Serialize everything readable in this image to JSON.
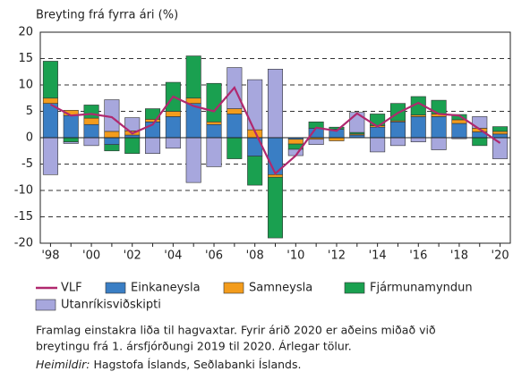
{
  "chart_data": {
    "type": "bar",
    "stacked": true,
    "ylabel": "Breyting frá fyrra ári (%)",
    "categories": [
      "'98",
      null,
      "'00",
      null,
      "'02",
      null,
      "'04",
      null,
      "'06",
      null,
      "'08",
      null,
      "'10",
      null,
      "'12",
      null,
      "'14",
      null,
      "'16",
      null,
      "'18",
      null,
      "'20"
    ],
    "series": [
      {
        "name": "VLF",
        "type": "line",
        "color": "#b0286e",
        "values": [
          6.3,
          4.2,
          4.5,
          3.9,
          0.8,
          2.5,
          7.8,
          6.0,
          5.0,
          9.5,
          1.2,
          -6.8,
          -3.4,
          1.9,
          1.3,
          4.6,
          2.1,
          4.7,
          6.6,
          4.5,
          4.2,
          1.6,
          -1.0
        ]
      },
      {
        "name": "Einkaneysla",
        "color": "#3a7ec4",
        "values": [
          6.5,
          4.2,
          2.5,
          -1.3,
          0.5,
          3.0,
          4.0,
          6.5,
          2.5,
          4.5,
          -3.5,
          -7.0,
          -0.3,
          1.8,
          1.6,
          0.5,
          2.0,
          3.0,
          4.0,
          4.0,
          2.7,
          1.1,
          0.7
        ]
      },
      {
        "name": "Samneysla",
        "color": "#f39c1c",
        "values": [
          1.0,
          1.0,
          1.2,
          1.2,
          0.8,
          0.5,
          1.0,
          1.0,
          0.5,
          1.0,
          1.5,
          -0.5,
          -0.9,
          -0.3,
          -0.6,
          0.2,
          0.3,
          0.2,
          0.3,
          0.5,
          0.7,
          0.7,
          0.5
        ]
      },
      {
        "name": "Fjármunamyndun",
        "color": "#1aa050",
        "values": [
          7.0,
          -0.8,
          2.5,
          -1.2,
          -3.0,
          2.0,
          5.5,
          8.0,
          7.3,
          -4.0,
          -5.5,
          -11.5,
          -1.0,
          1.2,
          0.4,
          0.3,
          2.2,
          3.3,
          3.5,
          2.6,
          1.0,
          -1.5,
          0.9
        ]
      },
      {
        "name": "Utanríkisviðskipti",
        "color": "#a7a7dd",
        "values": [
          -7.0,
          -0.3,
          -1.5,
          6.0,
          2.5,
          -3.0,
          -2.0,
          -8.5,
          -5.5,
          7.8,
          9.5,
          13.0,
          -1.2,
          -1.0,
          0,
          3.8,
          -2.7,
          -1.5,
          -0.8,
          -2.3,
          -0.2,
          2.2,
          -4.0
        ]
      }
    ],
    "ylim": [
      -20,
      20
    ],
    "yticks": [
      -20,
      -15,
      -10,
      -5,
      0,
      5,
      10,
      15,
      20
    ],
    "grid": true,
    "notes": [
      "Framlag einstakra liða til hagvaxtar.  Fyrir árið 2020 er aðeins miðað við",
      "breytingu frá 1. ársfjórðungi 2019 til 2020. Árlegar tölur."
    ],
    "source_label": "Heimildir:",
    "source": "Hagstofa Íslands, Seðlabanki Íslands."
  }
}
